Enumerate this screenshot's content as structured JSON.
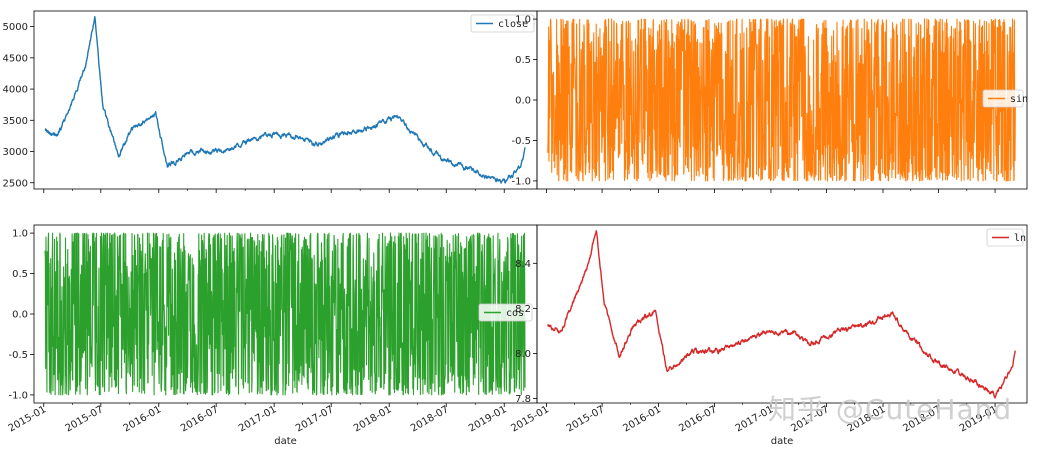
{
  "watermark": "知乎 @CuteHand",
  "chart_data": [
    {
      "type": "line",
      "series": [
        {
          "name": "close",
          "color": "#1f77b4"
        }
      ],
      "x": [
        "2015-01-05",
        "2015-02-15",
        "2015-04-01",
        "2015-05-15",
        "2015-06-12",
        "2015-07-08",
        "2015-08-26",
        "2015-10-15",
        "2015-12-22",
        "2016-01-28",
        "2016-04-15",
        "2016-07-15",
        "2016-11-29",
        "2017-03-15",
        "2017-05-10",
        "2017-08-15",
        "2017-11-13",
        "2018-01-29",
        "2018-03-15",
        "2018-06-15",
        "2018-10-18",
        "2019-01-03",
        "2019-02-25",
        "2019-03-08"
      ],
      "values": [
        3350,
        3250,
        3800,
        4400,
        5150,
        3700,
        2950,
        3400,
        3600,
        2750,
        3000,
        3000,
        3250,
        3250,
        3100,
        3300,
        3400,
        3560,
        3300,
        2900,
        2650,
        2480,
        2800,
        3000
      ],
      "xlim": [
        "2014-12-01",
        "2019-04-15"
      ],
      "ylim": [
        2400,
        5250
      ],
      "yticks": [
        2500,
        3000,
        3500,
        4000,
        4500,
        5000
      ],
      "ytick_labels": [
        "2500",
        "3000",
        "3500",
        "4000",
        "4500",
        "5000"
      ],
      "legend": "top-right"
    },
    {
      "type": "line",
      "series": [
        {
          "name": "sin",
          "color": "#ff7f0e",
          "range": [
            -1,
            1
          ]
        }
      ],
      "xlim": [
        "2014-12-01",
        "2019-04-15"
      ],
      "ylim": [
        -1.1,
        1.1
      ],
      "yticks": [
        -1.0,
        -0.5,
        0.0,
        0.5,
        1.0
      ],
      "ytick_labels": [
        "-1.0",
        "-0.5",
        "0.0",
        "0.5",
        "1.0"
      ],
      "legend": "center-right"
    },
    {
      "type": "line",
      "series": [
        {
          "name": "cos",
          "color": "#2ca02c",
          "range": [
            -1,
            1
          ]
        }
      ],
      "xlim": [
        "2014-12-01",
        "2019-04-15"
      ],
      "ylim": [
        -1.1,
        1.1
      ],
      "yticks": [
        -1.0,
        -0.5,
        0.0,
        0.5,
        1.0
      ],
      "ytick_labels": [
        "-1.0",
        "-0.5",
        "0.0",
        "0.5",
        "1.0"
      ],
      "xlabel": "date",
      "xticks": [
        "2015-01-01",
        "2015-07-01",
        "2016-01-01",
        "2016-07-01",
        "2017-01-01",
        "2017-07-01",
        "2018-01-01",
        "2018-07-01",
        "2019-01-01"
      ],
      "xtick_labels": [
        "2015-01",
        "2015-07",
        "2016-01",
        "2016-07",
        "2017-01",
        "2017-07",
        "2018-01",
        "2018-07",
        "2019-01"
      ],
      "legend": "center-right"
    },
    {
      "type": "line",
      "series": [
        {
          "name": "ln",
          "color": "#d62728"
        }
      ],
      "x": [
        "2015-01-05",
        "2015-02-15",
        "2015-04-01",
        "2015-05-15",
        "2015-06-12",
        "2015-07-08",
        "2015-08-26",
        "2015-10-15",
        "2015-12-22",
        "2016-01-28",
        "2016-04-15",
        "2016-07-15",
        "2016-11-29",
        "2017-03-15",
        "2017-05-10",
        "2017-08-15",
        "2017-11-13",
        "2018-01-29",
        "2018-03-15",
        "2018-06-15",
        "2018-10-18",
        "2019-01-03",
        "2019-02-25",
        "2019-03-08"
      ],
      "values": [
        8.12,
        8.09,
        8.24,
        8.39,
        8.55,
        8.22,
        7.99,
        8.13,
        8.19,
        7.92,
        8.01,
        8.01,
        8.09,
        8.09,
        8.04,
        8.1,
        8.13,
        8.18,
        8.1,
        7.97,
        7.88,
        7.82,
        7.94,
        8.01
      ],
      "xlim": [
        "2014-12-01",
        "2019-04-15"
      ],
      "ylim": [
        7.78,
        8.57
      ],
      "yticks": [
        7.8,
        8.0,
        8.2,
        8.4
      ],
      "ytick_labels": [
        "7.8",
        "8.0",
        "8.2",
        "8.4"
      ],
      "xlabel": "date",
      "xticks": [
        "2015-01-01",
        "2015-07-01",
        "2016-01-01",
        "2016-07-01",
        "2017-01-01",
        "2017-07-01",
        "2018-01-01",
        "2018-07-01",
        "2019-01-01"
      ],
      "xtick_labels": [
        "2015-01",
        "2015-07",
        "2016-01",
        "2016-07",
        "2017-01",
        "2017-07",
        "2018-01",
        "2018-07",
        "2019-01"
      ],
      "legend": "top-right"
    }
  ]
}
